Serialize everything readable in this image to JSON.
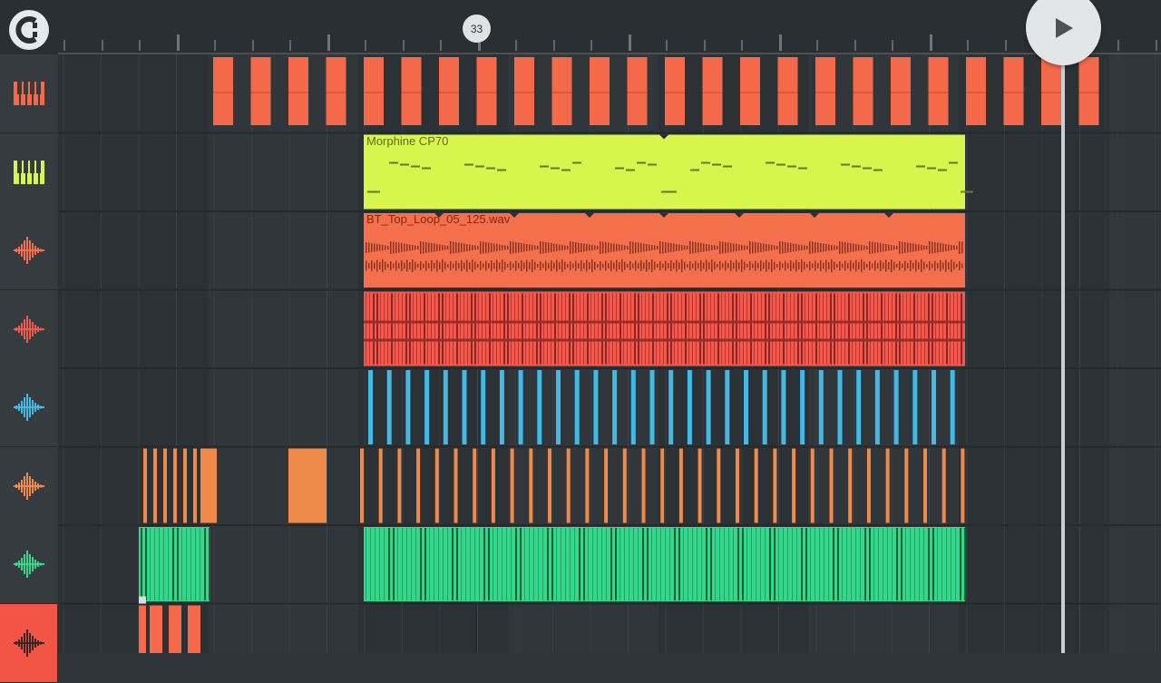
{
  "app": {
    "marker_label": "33"
  },
  "colors": {
    "pattern_red": "#f5694b",
    "synth_green": "#d8f54e",
    "audio_orange": "#f4704c",
    "loop_red": "#f05a4e",
    "hihat_blue": "#43b9e6",
    "perc_orange": "#f08a4b",
    "chord_green": "#35d78a",
    "sidebar_selected": "#f25546"
  },
  "tracks": [
    {
      "icon": "piano-keys-icon",
      "color": "#f5694b"
    },
    {
      "icon": "piano-keys-icon",
      "color": "#d8f54e"
    },
    {
      "icon": "waveform-icon",
      "color": "#f4704c"
    },
    {
      "icon": "waveform-icon",
      "color": "#f05a4e"
    },
    {
      "icon": "waveform-icon",
      "color": "#43b9e6"
    },
    {
      "icon": "waveform-icon",
      "color": "#f08a4b"
    },
    {
      "icon": "waveform-icon",
      "color": "#35d78a"
    },
    {
      "icon": "waveform-icon",
      "color": "#f25546",
      "selected": true
    }
  ],
  "clips": {
    "synth_name": "Morphine CP70",
    "audio_name": "BT_Top_Loop_05_125.wav"
  }
}
